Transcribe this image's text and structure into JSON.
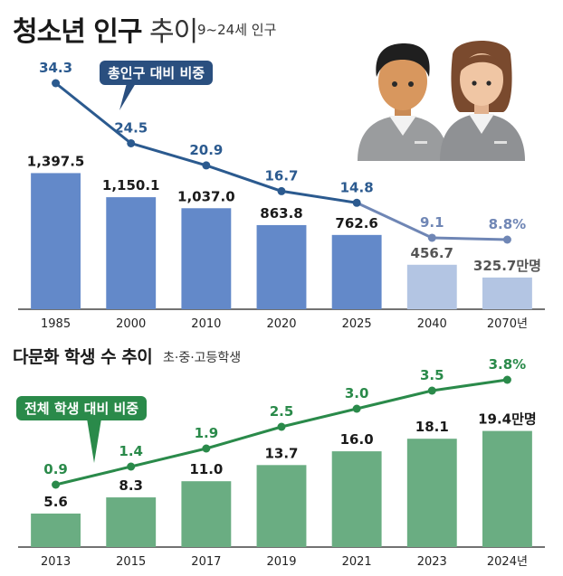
{
  "header1": {
    "title_bold": "청소년 인구",
    "title_light": " 추이",
    "subtitle": "9~24세 인구"
  },
  "header2": {
    "title": "다문화 학생 수 추이",
    "subtitle": "초·중·고등학생"
  },
  "colors": {
    "bar_blue": "#6389c9",
    "bar_blue_light": "#b3c5e3",
    "line_blue": "#2b5a8f",
    "line_blue_light": "#6f86b5",
    "bar_green": "#6aad82",
    "line_green": "#2a8a4a",
    "green_text": "#2a8a4a"
  },
  "illustration": {
    "icon": "students-icon"
  },
  "chart_data": [
    {
      "type": "bar",
      "title": "청소년 인구 추이",
      "categories": [
        "1985",
        "2000",
        "2010",
        "2020",
        "2025",
        "2040",
        "2070년"
      ],
      "values": [
        1397.5,
        1150.1,
        1037.0,
        863.8,
        762.6,
        456.7,
        325.7
      ],
      "value_labels": [
        "1,397.5",
        "1,150.1",
        "1,037.0",
        "863.8",
        "762.6",
        "456.7",
        "325.7만명"
      ],
      "projected_from_index": 5,
      "ylim": [
        0,
        1550
      ],
      "line": {
        "name": "총인구 대비 비중",
        "values": [
          34.3,
          24.5,
          20.9,
          16.7,
          14.8,
          9.1,
          8.8
        ],
        "labels": [
          "34.3",
          "24.5",
          "20.9",
          "16.7",
          "14.8",
          "9.1",
          "8.8%"
        ],
        "ylim": [
          8.8,
          34.3
        ]
      }
    },
    {
      "type": "bar",
      "title": "다문화 학생 수 추이",
      "categories": [
        "2013",
        "2015",
        "2017",
        "2019",
        "2021",
        "2023",
        "2024년"
      ],
      "values": [
        5.6,
        8.3,
        11.0,
        13.7,
        16.0,
        18.1,
        19.4
      ],
      "value_labels": [
        "5.6",
        "8.3",
        "11.0",
        "13.7",
        "16.0",
        "18.1",
        "19.4만명"
      ],
      "ylim": [
        0,
        21
      ],
      "line": {
        "name": "전체 학생 대비 비중",
        "values": [
          0.9,
          1.4,
          1.9,
          2.5,
          3.0,
          3.5,
          3.8
        ],
        "labels": [
          "0.9",
          "1.4",
          "1.9",
          "2.5",
          "3.0",
          "3.5",
          "3.8%"
        ],
        "ylim": [
          0.9,
          3.8
        ]
      }
    }
  ]
}
